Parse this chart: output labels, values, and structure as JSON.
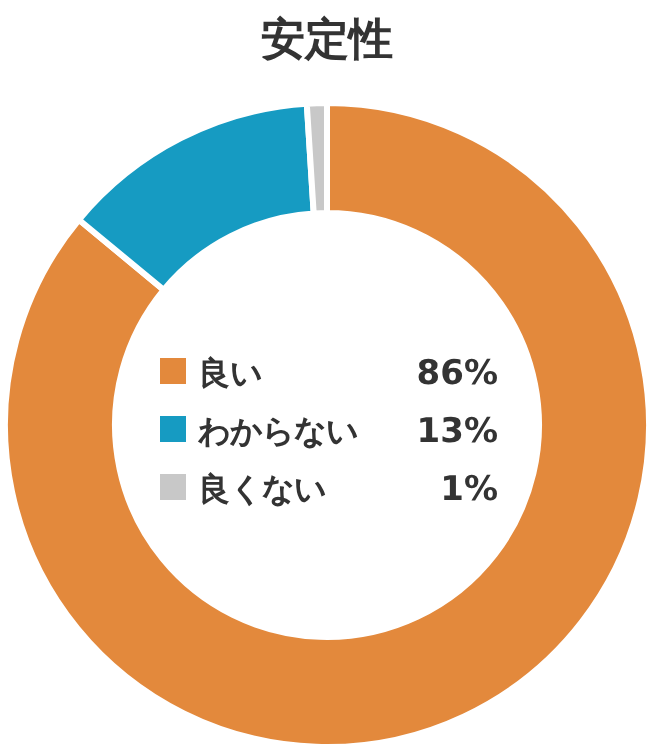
{
  "chart_data": {
    "type": "donut",
    "title": "安定性",
    "categories": [
      "良い",
      "わからない",
      "良くない"
    ],
    "values": [
      86,
      13,
      1
    ],
    "value_labels": [
      "86%",
      "13%",
      "1%"
    ],
    "colors": [
      "#e3893c",
      "#169bc2",
      "#c8c8c8"
    ],
    "legend": "center"
  }
}
